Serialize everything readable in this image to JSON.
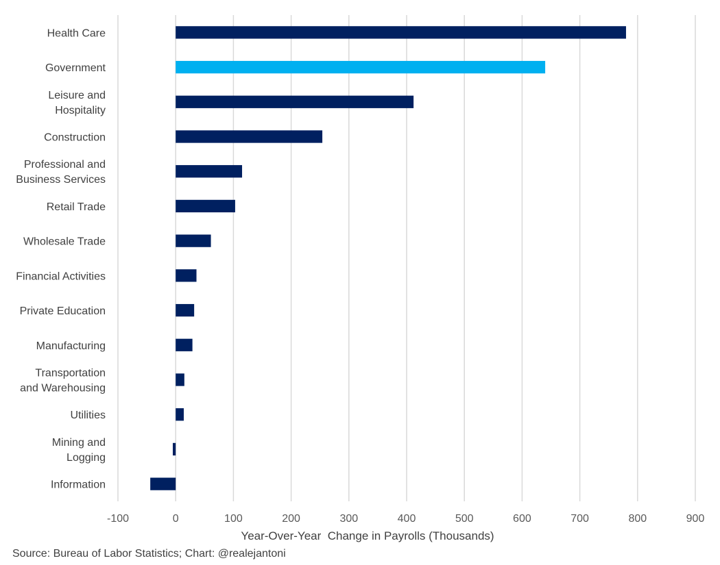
{
  "chart_data": {
    "type": "bar",
    "orientation": "horizontal",
    "categories": [
      "Health Care",
      "Government",
      "Leisure and Hospitality",
      "Construction",
      "Professional and Business Services",
      "Retail Trade",
      "Wholesale Trade",
      "Financial Activities",
      "Private Education",
      "Manufacturing",
      "Transportation and Warehousing",
      "Utilities",
      "Mining and Logging",
      "Information"
    ],
    "category_lines": [
      [
        "Health Care"
      ],
      [
        "Government"
      ],
      [
        "Leisure and",
        "Hospitality"
      ],
      [
        "Construction"
      ],
      [
        "Professional and",
        "Business Services"
      ],
      [
        "Retail Trade"
      ],
      [
        "Wholesale Trade"
      ],
      [
        "Financial Activities"
      ],
      [
        "Private Education"
      ],
      [
        "Manufacturing"
      ],
      [
        "Transportation",
        "and Warehousing"
      ],
      [
        "Utilities"
      ],
      [
        "Mining and",
        "Logging"
      ],
      [
        "Information"
      ]
    ],
    "values": [
      780,
      640,
      412,
      254,
      115,
      103,
      61,
      36,
      32,
      29,
      15,
      14,
      -5,
      -44
    ],
    "highlight_index": 1,
    "colors": {
      "default": "#002060",
      "highlight": "#00B0F0",
      "grid": "#D9D9D9"
    },
    "xlim": [
      -100,
      900
    ],
    "xticks": [
      -100,
      0,
      100,
      200,
      300,
      400,
      500,
      600,
      700,
      800,
      900
    ],
    "xlabel": "Year-Over-Year  Change in Payrolls (Thousands)",
    "grid": true,
    "legend": "none"
  },
  "source": "Source: Bureau of Labor Statistics; Chart: @realejantoni"
}
